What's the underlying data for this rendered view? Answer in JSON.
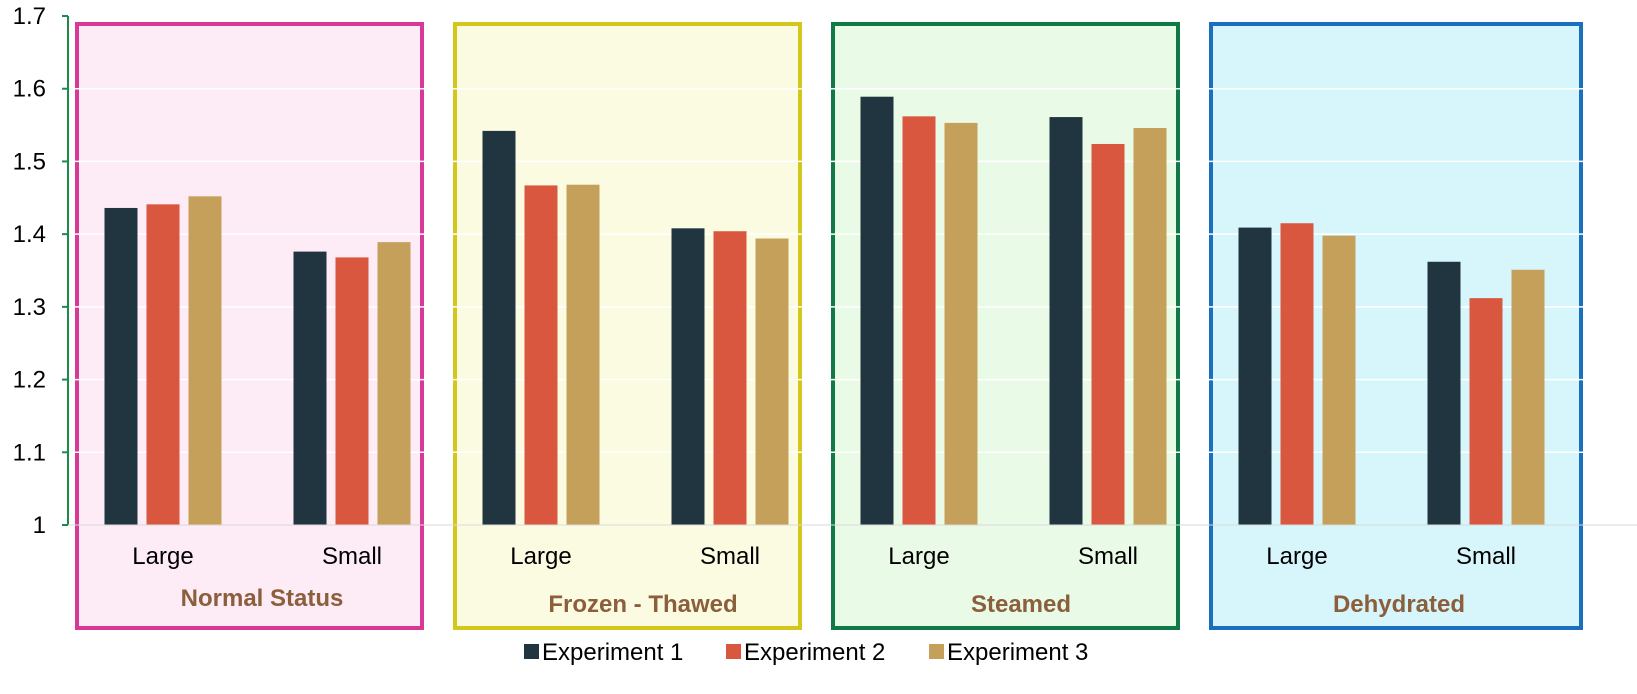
{
  "chart_data": {
    "type": "bar",
    "ylim": [
      1,
      1.7
    ],
    "yticks": [
      "1",
      "1.1",
      "1.2",
      "1.3",
      "1.4",
      "1.5",
      "1.6",
      "1.7"
    ],
    "grid": true,
    "legend_position": "bottom",
    "series": [
      {
        "name": "Experiment 1",
        "color": "#203540"
      },
      {
        "name": "Experiment 2",
        "color": "#d9573f"
      },
      {
        "name": "Experiment 3",
        "color": "#c5a05a"
      }
    ],
    "groups": [
      {
        "label": "Normal Status",
        "fill": "#fdebf6",
        "border": "#d63a96",
        "categories": [
          {
            "label": "Large",
            "values": [
              1.436,
              1.441,
              1.452
            ]
          },
          {
            "label": "Small",
            "values": [
              1.376,
              1.368,
              1.389
            ]
          }
        ]
      },
      {
        "label": "Frozen - Thawed",
        "fill": "#fbfbe1",
        "border": "#d4c61a",
        "categories": [
          {
            "label": "Large",
            "values": [
              1.542,
              1.467,
              1.468
            ]
          },
          {
            "label": "Small",
            "values": [
              1.408,
              1.404,
              1.394
            ]
          }
        ]
      },
      {
        "label": "Steamed",
        "fill": "#e9fbe6",
        "border": "#0f7a45",
        "categories": [
          {
            "label": "Large",
            "values": [
              1.589,
              1.562,
              1.553
            ]
          },
          {
            "label": "Small",
            "values": [
              1.561,
              1.524,
              1.546
            ]
          }
        ]
      },
      {
        "label": "Dehydrated",
        "fill": "#d7f6fb",
        "border": "#1a6fbf",
        "categories": [
          {
            "label": "Large",
            "values": [
              1.409,
              1.415,
              1.398
            ]
          },
          {
            "label": "Small",
            "values": [
              1.362,
              1.312,
              1.351
            ]
          }
        ]
      }
    ],
    "group_label_color": "#8b5e3c"
  }
}
